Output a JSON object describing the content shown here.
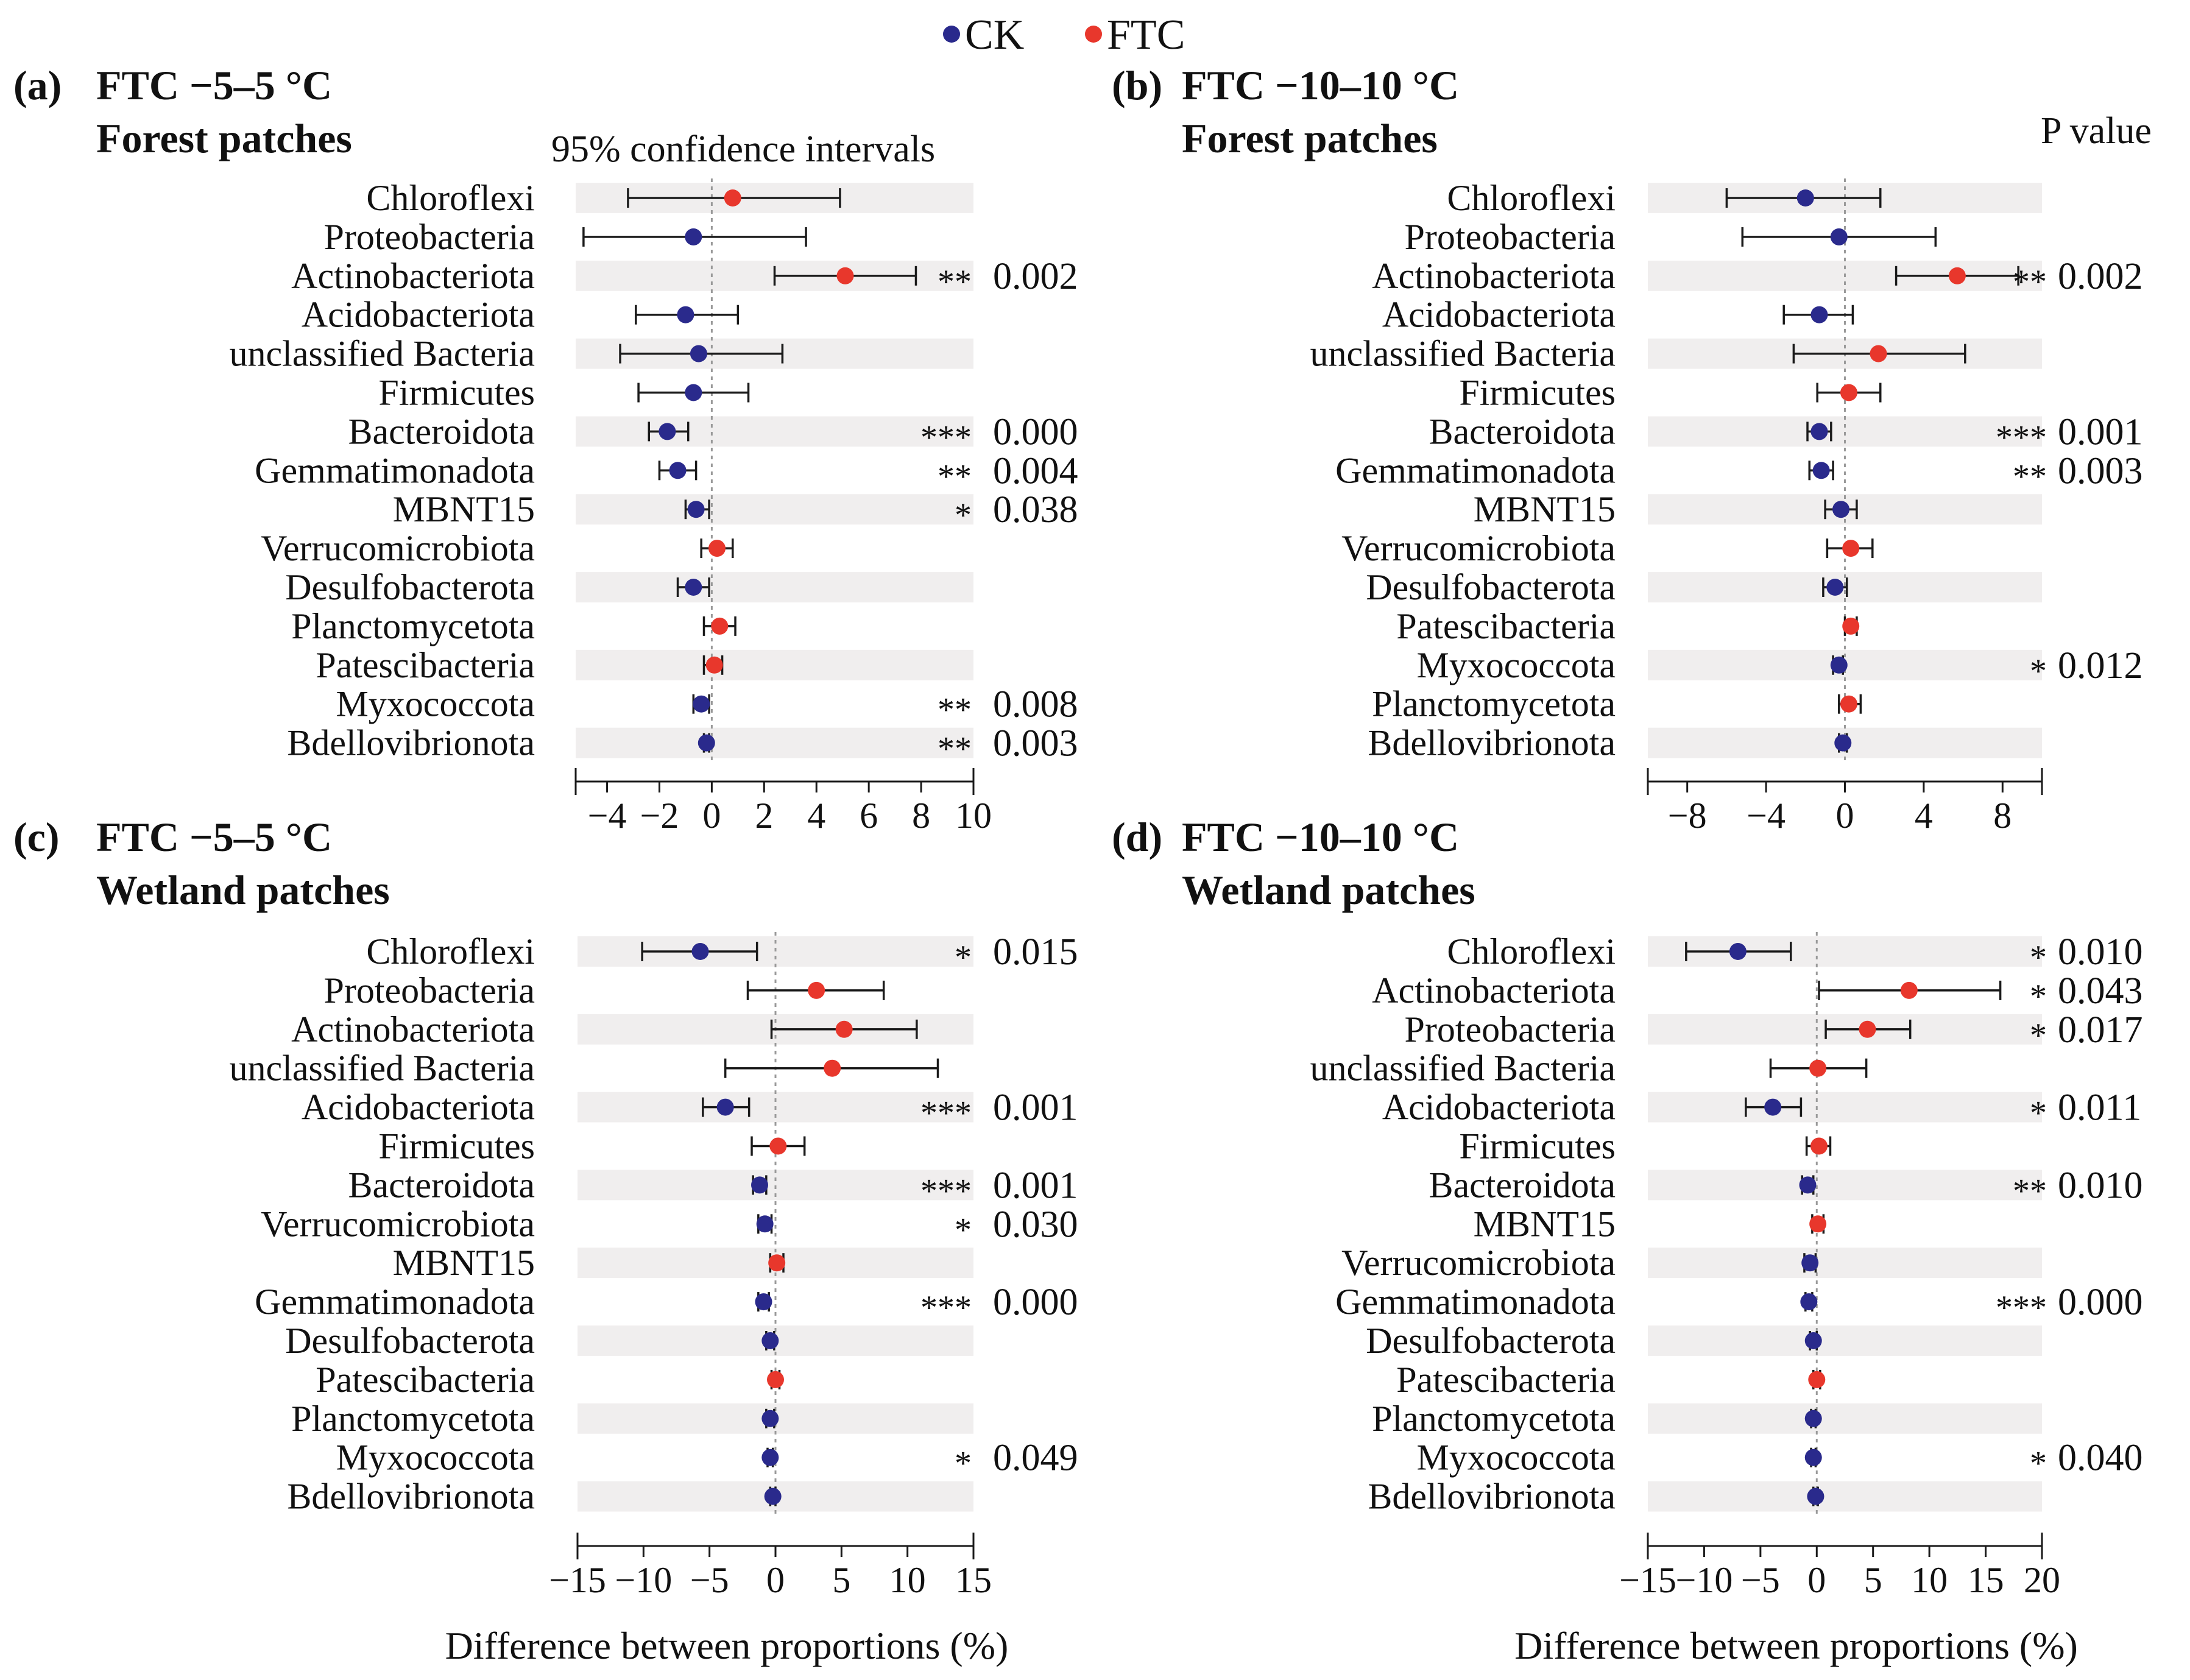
{
  "legend": {
    "items": [
      {
        "label": "CK",
        "color": "#2a2a8c"
      },
      {
        "label": "FTC",
        "color": "#e8372c"
      }
    ]
  },
  "header_ci": "95% confidence intervals",
  "header_p": "P value",
  "chart_data": [
    {
      "type": "scatter",
      "id": "a",
      "tag": "(a)",
      "title": "FTC −5–5 °C",
      "subtitle": "Forest patches",
      "xlabel": "",
      "xlim": [
        -5.2,
        10
      ],
      "xticks": [
        -4,
        -2,
        0,
        2,
        4,
        6,
        8,
        10
      ],
      "xtick_labels": [
        "−4",
        "−2",
        "0",
        "2",
        "4",
        "6",
        "8",
        "10"
      ],
      "rows": [
        {
          "taxon": "Chloroflexi",
          "group": "FTC",
          "diff": 0.8,
          "ci": [
            -3.2,
            4.9
          ],
          "stars": "",
          "p": ""
        },
        {
          "taxon": "Proteobacteria",
          "group": "CK",
          "diff": -0.7,
          "ci": [
            -4.9,
            3.6
          ],
          "stars": "",
          "p": ""
        },
        {
          "taxon": "Actinobacteriota",
          "group": "FTC",
          "diff": 5.1,
          "ci": [
            2.4,
            7.8
          ],
          "stars": "**",
          "p": "0.002"
        },
        {
          "taxon": "Acidobacteriota",
          "group": "CK",
          "diff": -1.0,
          "ci": [
            -2.9,
            1.0
          ],
          "stars": "",
          "p": ""
        },
        {
          "taxon": "unclassified Bacteria",
          "group": "CK",
          "diff": -0.5,
          "ci": [
            -3.5,
            2.7
          ],
          "stars": "",
          "p": ""
        },
        {
          "taxon": "Firmicutes",
          "group": "CK",
          "diff": -0.7,
          "ci": [
            -2.8,
            1.4
          ],
          "stars": "",
          "p": ""
        },
        {
          "taxon": "Bacteroidota",
          "group": "CK",
          "diff": -1.7,
          "ci": [
            -2.4,
            -0.9
          ],
          "stars": "***",
          "p": "0.000"
        },
        {
          "taxon": "Gemmatimonadota",
          "group": "CK",
          "diff": -1.3,
          "ci": [
            -2.0,
            -0.6
          ],
          "stars": "**",
          "p": "0.004"
        },
        {
          "taxon": "MBNT15",
          "group": "CK",
          "diff": -0.6,
          "ci": [
            -1.0,
            -0.1
          ],
          "stars": "*",
          "p": "0.038"
        },
        {
          "taxon": "Verrucomicrobiota",
          "group": "FTC",
          "diff": 0.2,
          "ci": [
            -0.4,
            0.8
          ],
          "stars": "",
          "p": ""
        },
        {
          "taxon": "Desulfobacterota",
          "group": "CK",
          "diff": -0.7,
          "ci": [
            -1.3,
            -0.1
          ],
          "stars": "",
          "p": ""
        },
        {
          "taxon": "Planctomycetota",
          "group": "FTC",
          "diff": 0.3,
          "ci": [
            -0.3,
            0.9
          ],
          "stars": "",
          "p": ""
        },
        {
          "taxon": "Patescibacteria",
          "group": "FTC",
          "diff": 0.1,
          "ci": [
            -0.3,
            0.4
          ],
          "stars": "",
          "p": ""
        },
        {
          "taxon": "Myxococcota",
          "group": "CK",
          "diff": -0.4,
          "ci": [
            -0.7,
            -0.1
          ],
          "stars": "**",
          "p": "0.008"
        },
        {
          "taxon": "Bdellovibrionota",
          "group": "CK",
          "diff": -0.2,
          "ci": [
            -0.3,
            -0.1
          ],
          "stars": "**",
          "p": "0.003"
        }
      ]
    },
    {
      "type": "scatter",
      "id": "b",
      "tag": "(b)",
      "title": "FTC −10–10 °C",
      "subtitle": "Forest patches",
      "xlabel": "",
      "xlim": [
        -10,
        10
      ],
      "xticks": [
        -8,
        -4,
        0,
        4,
        8
      ],
      "xtick_labels": [
        "−8",
        "−4",
        "0",
        "4",
        "8"
      ],
      "rows": [
        {
          "taxon": "Chloroflexi",
          "group": "CK",
          "diff": -2.0,
          "ci": [
            -6.0,
            1.8
          ],
          "stars": "",
          "p": ""
        },
        {
          "taxon": "Proteobacteria",
          "group": "CK",
          "diff": -0.3,
          "ci": [
            -5.2,
            4.6
          ],
          "stars": "",
          "p": ""
        },
        {
          "taxon": "Actinobacteriota",
          "group": "FTC",
          "diff": 5.7,
          "ci": [
            2.6,
            8.8
          ],
          "stars": "**",
          "p": "0.002"
        },
        {
          "taxon": "Acidobacteriota",
          "group": "CK",
          "diff": -1.3,
          "ci": [
            -3.1,
            0.4
          ],
          "stars": "",
          "p": ""
        },
        {
          "taxon": "unclassified Bacteria",
          "group": "FTC",
          "diff": 1.7,
          "ci": [
            -2.6,
            6.1
          ],
          "stars": "",
          "p": ""
        },
        {
          "taxon": "Firmicutes",
          "group": "FTC",
          "diff": 0.2,
          "ci": [
            -1.4,
            1.8
          ],
          "stars": "",
          "p": ""
        },
        {
          "taxon": "Bacteroidota",
          "group": "CK",
          "diff": -1.3,
          "ci": [
            -1.9,
            -0.7
          ],
          "stars": "***",
          "p": "0.001"
        },
        {
          "taxon": "Gemmatimonadota",
          "group": "CK",
          "diff": -1.2,
          "ci": [
            -1.8,
            -0.6
          ],
          "stars": "**",
          "p": "0.003"
        },
        {
          "taxon": "MBNT15",
          "group": "CK",
          "diff": -0.2,
          "ci": [
            -1.0,
            0.6
          ],
          "stars": "",
          "p": ""
        },
        {
          "taxon": "Verrucomicrobiota",
          "group": "FTC",
          "diff": 0.3,
          "ci": [
            -0.9,
            1.4
          ],
          "stars": "",
          "p": ""
        },
        {
          "taxon": "Desulfobacterota",
          "group": "CK",
          "diff": -0.5,
          "ci": [
            -1.1,
            0.1
          ],
          "stars": "",
          "p": ""
        },
        {
          "taxon": "Patescibacteria",
          "group": "FTC",
          "diff": 0.3,
          "ci": [
            0.0,
            0.6
          ],
          "stars": "",
          "p": ""
        },
        {
          "taxon": "Myxococcota",
          "group": "CK",
          "diff": -0.3,
          "ci": [
            -0.6,
            -0.1
          ],
          "stars": "*",
          "p": "0.012"
        },
        {
          "taxon": "Planctomycetota",
          "group": "FTC",
          "diff": 0.2,
          "ci": [
            -0.3,
            0.8
          ],
          "stars": "",
          "p": ""
        },
        {
          "taxon": "Bdellovibrionota",
          "group": "CK",
          "diff": -0.1,
          "ci": [
            -0.3,
            0.1
          ],
          "stars": "",
          "p": ""
        }
      ]
    },
    {
      "type": "scatter",
      "id": "c",
      "tag": "(c)",
      "title": "FTC −5–5 °C",
      "subtitle": "Wetland patches",
      "xlabel": "Difference between proportions (%)",
      "xlim": [
        -15,
        15
      ],
      "xticks": [
        -15,
        -10,
        -5,
        0,
        5,
        10,
        15
      ],
      "xtick_labels": [
        "−15",
        "−10",
        "−5",
        "0",
        "5",
        "10",
        "15"
      ],
      "rows": [
        {
          "taxon": "Chloroflexi",
          "group": "CK",
          "diff": -5.7,
          "ci": [
            -10.1,
            -1.4
          ],
          "stars": "*",
          "p": "0.015"
        },
        {
          "taxon": "Proteobacteria",
          "group": "FTC",
          "diff": 3.1,
          "ci": [
            -2.1,
            8.2
          ],
          "stars": "",
          "p": ""
        },
        {
          "taxon": "Actinobacteriota",
          "group": "FTC",
          "diff": 5.2,
          "ci": [
            -0.3,
            10.7
          ],
          "stars": "",
          "p": ""
        },
        {
          "taxon": "unclassified Bacteria",
          "group": "FTC",
          "diff": 4.3,
          "ci": [
            -3.8,
            12.3
          ],
          "stars": "",
          "p": ""
        },
        {
          "taxon": "Acidobacteriota",
          "group": "CK",
          "diff": -3.8,
          "ci": [
            -5.5,
            -2.0
          ],
          "stars": "***",
          "p": "0.001"
        },
        {
          "taxon": "Firmicutes",
          "group": "FTC",
          "diff": 0.2,
          "ci": [
            -1.8,
            2.2
          ],
          "stars": "",
          "p": ""
        },
        {
          "taxon": "Bacteroidota",
          "group": "CK",
          "diff": -1.2,
          "ci": [
            -1.7,
            -0.7
          ],
          "stars": "***",
          "p": "0.001"
        },
        {
          "taxon": "Verrucomicrobiota",
          "group": "CK",
          "diff": -0.8,
          "ci": [
            -1.3,
            -0.3
          ],
          "stars": "*",
          "p": "0.030"
        },
        {
          "taxon": "MBNT15",
          "group": "FTC",
          "diff": 0.1,
          "ci": [
            -0.4,
            0.6
          ],
          "stars": "",
          "p": ""
        },
        {
          "taxon": "Gemmatimonadota",
          "group": "CK",
          "diff": -0.9,
          "ci": [
            -1.3,
            -0.5
          ],
          "stars": "***",
          "p": "0.000"
        },
        {
          "taxon": "Desulfobacterota",
          "group": "CK",
          "diff": -0.4,
          "ci": [
            -0.7,
            -0.1
          ],
          "stars": "",
          "p": ""
        },
        {
          "taxon": "Patescibacteria",
          "group": "FTC",
          "diff": 0.0,
          "ci": [
            -0.3,
            0.3
          ],
          "stars": "",
          "p": ""
        },
        {
          "taxon": "Planctomycetota",
          "group": "CK",
          "diff": -0.4,
          "ci": [
            -0.7,
            -0.1
          ],
          "stars": "",
          "p": ""
        },
        {
          "taxon": "Myxococcota",
          "group": "CK",
          "diff": -0.4,
          "ci": [
            -0.6,
            -0.2
          ],
          "stars": "*",
          "p": "0.049"
        },
        {
          "taxon": "Bdellovibrionota",
          "group": "CK",
          "diff": -0.2,
          "ci": [
            -0.4,
            0.0
          ],
          "stars": "",
          "p": ""
        }
      ]
    },
    {
      "type": "scatter",
      "id": "d",
      "tag": "(d)",
      "title": "FTC −10–10 °C",
      "subtitle": "Wetland patches",
      "xlabel": "Difference between proportions (%)",
      "xlim": [
        -15,
        20
      ],
      "xticks": [
        -15,
        -10,
        -5,
        0,
        5,
        10,
        15,
        20
      ],
      "xtick_labels": [
        "−15",
        "−10",
        "−5",
        "0",
        "5",
        "10",
        "15",
        "20"
      ],
      "rows": [
        {
          "taxon": "Chloroflexi",
          "group": "CK",
          "diff": -7.0,
          "ci": [
            -11.6,
            -2.3
          ],
          "stars": "*",
          "p": "0.010"
        },
        {
          "taxon": "Actinobacteriota",
          "group": "FTC",
          "diff": 8.2,
          "ci": [
            0.2,
            16.3
          ],
          "stars": "*",
          "p": "0.043"
        },
        {
          "taxon": "Proteobacteria",
          "group": "FTC",
          "diff": 4.5,
          "ci": [
            0.8,
            8.3
          ],
          "stars": "*",
          "p": "0.017"
        },
        {
          "taxon": "unclassified Bacteria",
          "group": "FTC",
          "diff": 0.1,
          "ci": [
            -4.1,
            4.4
          ],
          "stars": "",
          "p": ""
        },
        {
          "taxon": "Acidobacteriota",
          "group": "CK",
          "diff": -3.9,
          "ci": [
            -6.3,
            -1.4
          ],
          "stars": "*",
          "p": "0.011"
        },
        {
          "taxon": "Firmicutes",
          "group": "FTC",
          "diff": 0.2,
          "ci": [
            -0.9,
            1.2
          ],
          "stars": "",
          "p": ""
        },
        {
          "taxon": "Bacteroidota",
          "group": "CK",
          "diff": -0.8,
          "ci": [
            -1.3,
            -0.3
          ],
          "stars": "**",
          "p": "0.010"
        },
        {
          "taxon": "MBNT15",
          "group": "FTC",
          "diff": 0.1,
          "ci": [
            -0.4,
            0.6
          ],
          "stars": "",
          "p": ""
        },
        {
          "taxon": "Verrucomicrobiota",
          "group": "CK",
          "diff": -0.6,
          "ci": [
            -1.1,
            -0.1
          ],
          "stars": "",
          "p": ""
        },
        {
          "taxon": "Gemmatimonadota",
          "group": "CK",
          "diff": -0.7,
          "ci": [
            -1.0,
            -0.4
          ],
          "stars": "***",
          "p": "0.000"
        },
        {
          "taxon": "Desulfobacterota",
          "group": "CK",
          "diff": -0.3,
          "ci": [
            -0.6,
            0.0
          ],
          "stars": "",
          "p": ""
        },
        {
          "taxon": "Patescibacteria",
          "group": "FTC",
          "diff": 0.0,
          "ci": [
            -0.3,
            0.3
          ],
          "stars": "",
          "p": ""
        },
        {
          "taxon": "Planctomycetota",
          "group": "CK",
          "diff": -0.3,
          "ci": [
            -0.5,
            -0.1
          ],
          "stars": "",
          "p": ""
        },
        {
          "taxon": "Myxococcota",
          "group": "CK",
          "diff": -0.3,
          "ci": [
            -0.5,
            -0.1
          ],
          "stars": "*",
          "p": "0.040"
        },
        {
          "taxon": "Bdellovibrionota",
          "group": "CK",
          "diff": -0.1,
          "ci": [
            -0.3,
            0.1
          ],
          "stars": "",
          "p": ""
        }
      ]
    }
  ]
}
